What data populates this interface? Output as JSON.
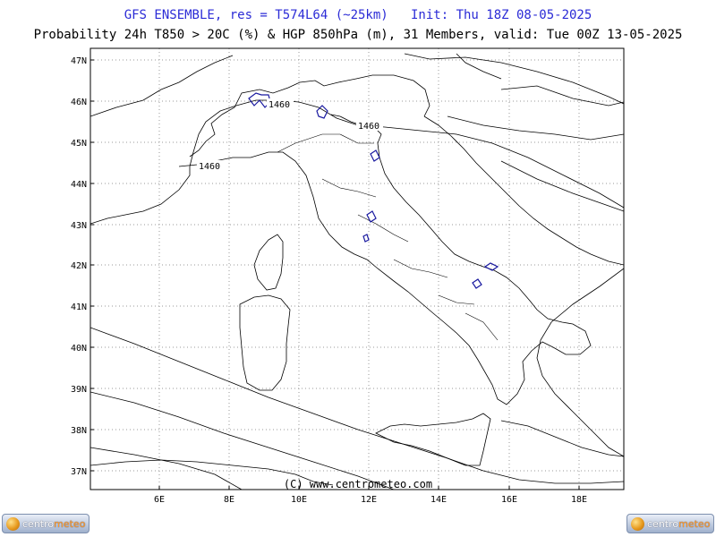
{
  "header": {
    "title_line1": "GFS ENSEMBLE, res = T574L64 (~25km)   Init: Thu 18Z 08-05-2025",
    "title_line2": "Probability 24h T850 > 20C (%) & HGP 850hPa (m), 31 Members, valid: Tue 00Z 13-05-2025"
  },
  "map": {
    "lat_labels": [
      "47N",
      "46N",
      "45N",
      "44N",
      "43N",
      "42N",
      "41N",
      "40N",
      "39N",
      "38N",
      "37N"
    ],
    "lon_labels": [
      "6E",
      "8E",
      "10E",
      "12E",
      "14E",
      "16E",
      "18E"
    ],
    "contour_labels": [
      "1460",
      "1460",
      "1460"
    ],
    "copyright": "(C) www.centrometeo.com",
    "colors": {
      "coast": "#000000",
      "probability": "#1a1aa0",
      "title": "#2b2bd6"
    }
  },
  "logos": {
    "left": {
      "brand_a": "centro",
      "brand_b": "meteo"
    },
    "right": {
      "brand_a": "centro",
      "brand_b": "meteo"
    }
  }
}
